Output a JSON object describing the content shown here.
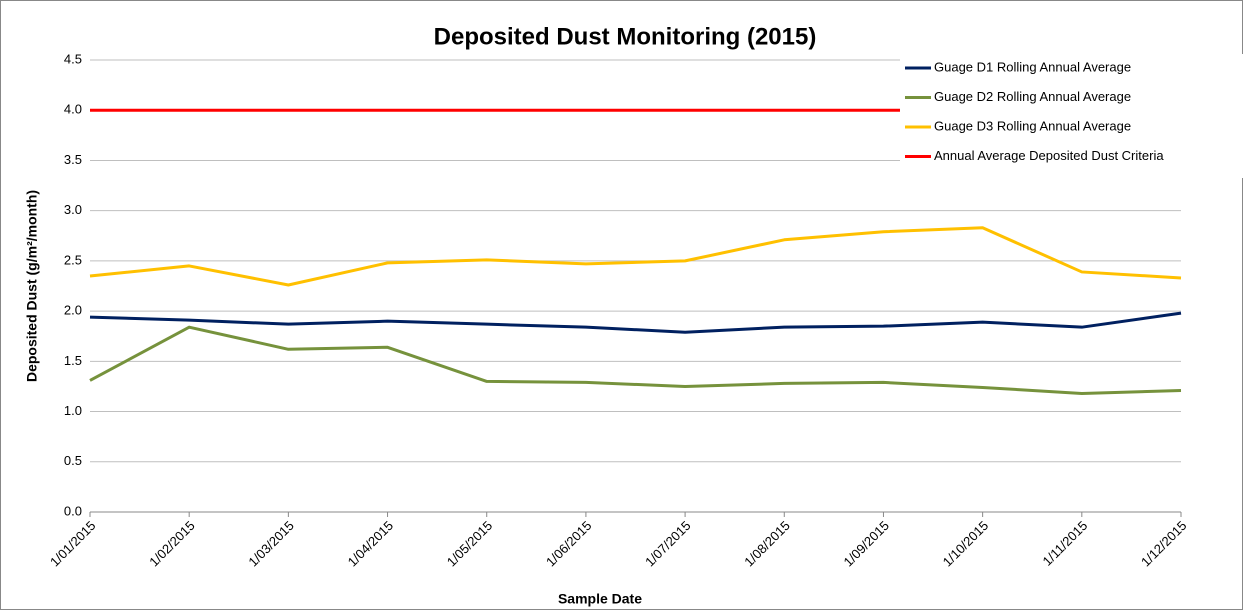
{
  "chart_data": {
    "type": "line",
    "title": "Deposited Dust Monitoring (2015)",
    "x_label": "Sample Date",
    "y_label": "Deposited Dust (g/m²/month)",
    "categories": [
      "1/01/2015",
      "1/02/2015",
      "1/03/2015",
      "1/04/2015",
      "1/05/2015",
      "1/06/2015",
      "1/07/2015",
      "1/08/2015",
      "1/09/2015",
      "1/10/2015",
      "1/11/2015",
      "1/12/2015"
    ],
    "series": [
      {
        "name": "Guage D1 Rolling Annual Average",
        "color": "#002060",
        "values": [
          1.94,
          1.91,
          1.87,
          1.9,
          1.87,
          1.84,
          1.79,
          1.84,
          1.85,
          1.89,
          1.84,
          1.98
        ]
      },
      {
        "name": "Guage D2 Rolling Annual Average",
        "color": "#76923c",
        "values": [
          1.31,
          1.84,
          1.62,
          1.64,
          1.3,
          1.29,
          1.25,
          1.28,
          1.29,
          1.24,
          1.18,
          1.21
        ]
      },
      {
        "name": "Guage D3 Rolling Annual Average",
        "color": "#ffc000",
        "values": [
          2.35,
          2.45,
          2.26,
          2.48,
          2.51,
          2.47,
          2.5,
          2.71,
          2.79,
          2.83,
          2.39,
          2.33
        ]
      },
      {
        "name": "Annual Average Deposited Dust Criteria",
        "color": "#ff0000",
        "values": [
          4,
          4,
          4,
          4,
          4,
          4,
          4,
          4,
          4,
          4,
          4,
          4
        ]
      }
    ],
    "ylim": [
      0,
      4.5
    ],
    "yticks": [
      {
        "value": 0,
        "label": "0.0"
      },
      0.5,
      {
        "value": 1,
        "label": "1.0"
      },
      1.5,
      {
        "value": 2,
        "label": "2.0"
      },
      2.5,
      {
        "value": 3,
        "label": "3.0"
      },
      3.5,
      {
        "value": 4,
        "label": "4.0"
      },
      4.5
    ],
    "grid": true,
    "legend": "top-right"
  }
}
